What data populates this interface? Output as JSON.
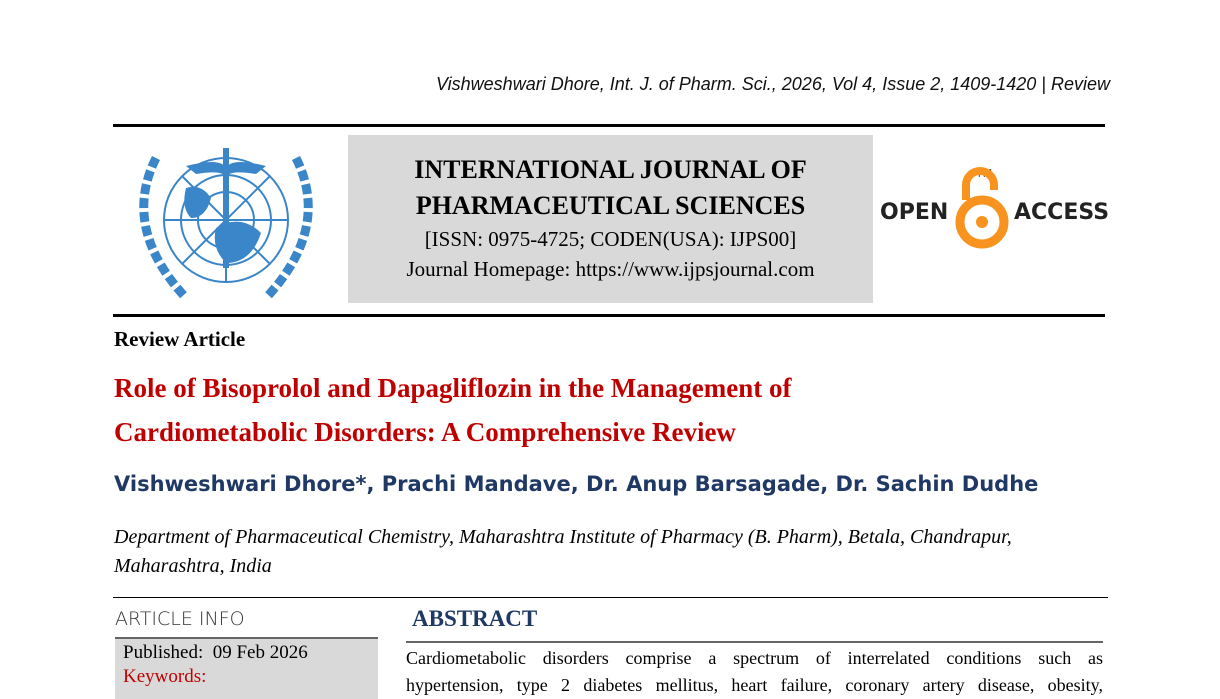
{
  "running_header": "Vishweshwari Dhore, Int. J. of Pharm. Sci., 2026, Vol 4, Issue 2, 1409-1420 | Review",
  "journal": {
    "title_line1": "INTERNATIONAL JOURNAL OF",
    "title_line2": "PHARMACEUTICAL SCIENCES",
    "issn": "[ISSN: 0975-4725; CODEN(USA): IJPS00]",
    "homepage": "Journal Homepage: https://www.ijpsjournal.com",
    "logo": "who-emblem-logo"
  },
  "open_access": {
    "left": "OPEN",
    "right": "ACCESS",
    "tm": "TM",
    "color": "#f7931e"
  },
  "article_type": "Review Article",
  "title_line1": "Role of Bisoprolol and Dapagliflozin in the Management of",
  "title_line2": "Cardiometabolic Disorders: A Comprehensive Review",
  "authors": "Vishweshwari Dhore*, Prachi Mandave, Dr. Anup Barsagade, Dr. Sachin Dudhe",
  "affiliation": "Department of Pharmaceutical Chemistry, Maharashtra Institute of Pharmacy (B. Pharm), Betala, Chandrapur, Maharashtra, India",
  "article_info": {
    "heading": "ARTICLE INFO",
    "published_label": "Published:",
    "published_date": "09 Feb 2026",
    "keywords_label": "Keywords:"
  },
  "abstract": {
    "heading": "ABSTRACT",
    "line1": "Cardiometabolic disorders comprise a spectrum of interrelated conditions such as",
    "line2": "hypertension, type 2 diabetes mellitus, heart failure, coronary artery disease, obesity,"
  },
  "colors": {
    "title": "#c00000",
    "navy": "#1f3864",
    "box": "#d9d9d9"
  }
}
